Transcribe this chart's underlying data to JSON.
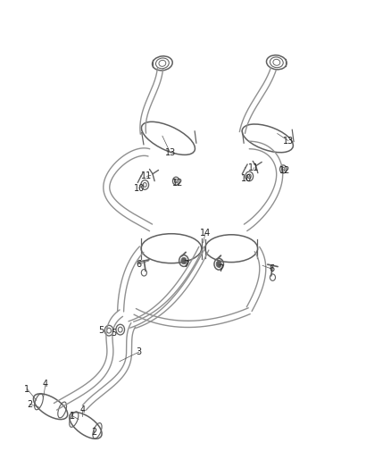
{
  "background_color": "#ffffff",
  "line_color": "#909090",
  "dark_line_color": "#606060",
  "label_color": "#222222",
  "figsize": [
    4.38,
    5.33
  ],
  "dpi": 100,
  "pipe_lw": 1.0,
  "component_lw": 1.1,
  "label_fontsize": 7.0,
  "labels": [
    {
      "text": "1",
      "ix": 0.068,
      "iy": 0.818
    },
    {
      "text": "2",
      "ix": 0.075,
      "iy": 0.85
    },
    {
      "text": "4",
      "ix": 0.115,
      "iy": 0.808
    },
    {
      "text": "1",
      "ix": 0.185,
      "iy": 0.875
    },
    {
      "text": "2",
      "ix": 0.24,
      "iy": 0.91
    },
    {
      "text": "4",
      "ix": 0.21,
      "iy": 0.862
    },
    {
      "text": "3",
      "ix": 0.355,
      "iy": 0.74
    },
    {
      "text": "5",
      "ix": 0.258,
      "iy": 0.695
    },
    {
      "text": "5",
      "ix": 0.29,
      "iy": 0.7
    },
    {
      "text": "6",
      "ix": 0.355,
      "iy": 0.555
    },
    {
      "text": "7",
      "ix": 0.475,
      "iy": 0.555
    },
    {
      "text": "7",
      "ix": 0.565,
      "iy": 0.565
    },
    {
      "text": "6",
      "ix": 0.695,
      "iy": 0.565
    },
    {
      "text": "14",
      "ix": 0.525,
      "iy": 0.49
    },
    {
      "text": "10",
      "ix": 0.355,
      "iy": 0.395
    },
    {
      "text": "11",
      "ix": 0.375,
      "iy": 0.37
    },
    {
      "text": "12",
      "ix": 0.455,
      "iy": 0.385
    },
    {
      "text": "13",
      "ix": 0.435,
      "iy": 0.32
    },
    {
      "text": "10",
      "ix": 0.63,
      "iy": 0.375
    },
    {
      "text": "11",
      "ix": 0.65,
      "iy": 0.352
    },
    {
      "text": "12",
      "ix": 0.73,
      "iy": 0.358
    },
    {
      "text": "13",
      "ix": 0.738,
      "iy": 0.295
    }
  ]
}
